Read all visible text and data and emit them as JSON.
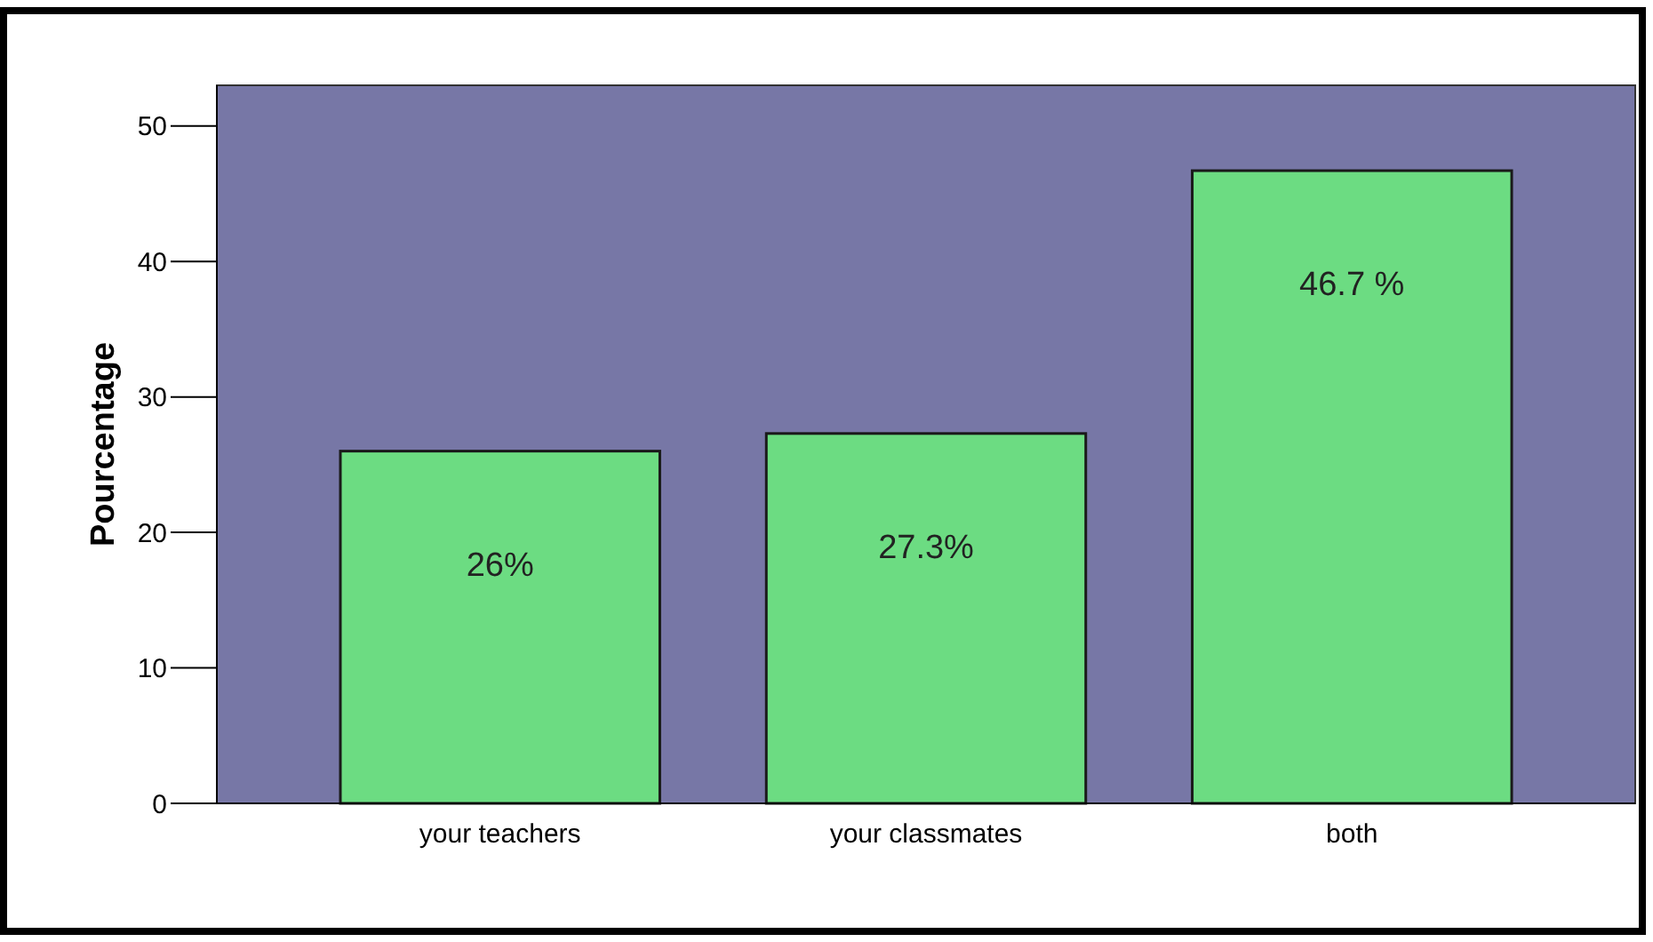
{
  "chart_data": {
    "type": "bar",
    "ylabel": "Pourcentage",
    "categories": [
      "your teachers",
      "your classmates",
      "both"
    ],
    "values": [
      26,
      27.3,
      46.7
    ],
    "color": "#6cdc82",
    "value_labels": [
      "26%",
      "27.3%",
      "46.7 %"
    ],
    "ylim": [
      0,
      53
    ],
    "yticks": [
      0,
      10,
      20,
      30,
      40,
      50
    ],
    "grid": false
  }
}
